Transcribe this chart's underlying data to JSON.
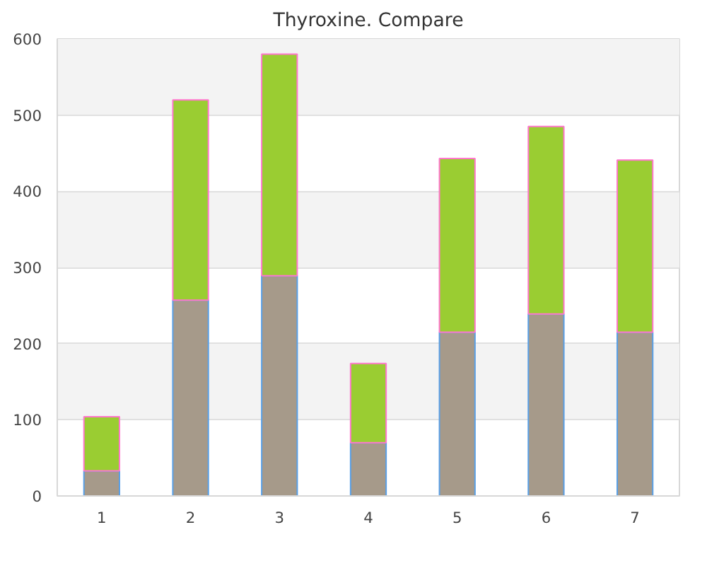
{
  "chart_data": {
    "type": "bar",
    "title": "Thyroxine. Compare",
    "stacked": true,
    "categories": [
      "1",
      "2",
      "3",
      "4",
      "5",
      "6",
      "7"
    ],
    "series": [
      {
        "color": "#a69a8a",
        "values": [
          33,
          257,
          289,
          70,
          215,
          239,
          215
        ]
      },
      {
        "color": "#9acd32",
        "values": [
          71,
          263,
          291,
          104,
          228,
          246,
          226
        ]
      }
    ],
    "ylim": [
      0,
      600
    ],
    "yticks": [
      0,
      100,
      200,
      300,
      400,
      500,
      600
    ],
    "grid": "y"
  }
}
